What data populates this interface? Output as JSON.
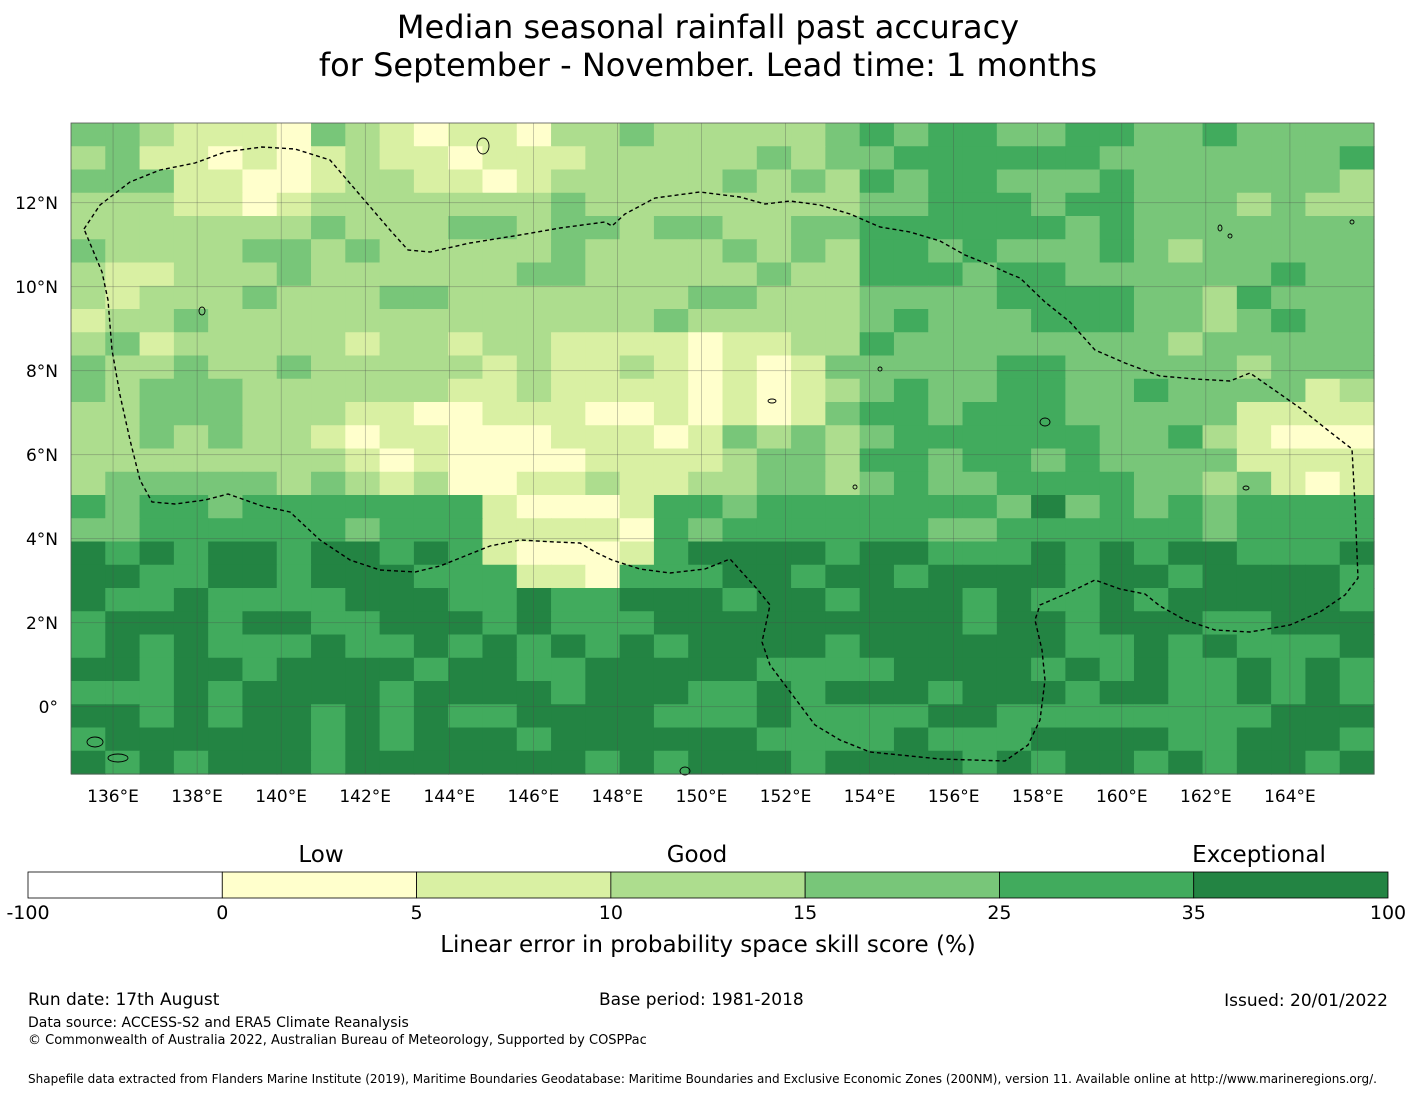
{
  "title": {
    "line1": "Median seasonal rainfall past accuracy",
    "line2": "for September - November. Lead time: 1 months"
  },
  "map": {
    "lon_range": [
      135.0,
      166.0
    ],
    "lat_range": [
      -1.6,
      13.9
    ],
    "x_ticks": [
      "136°E",
      "138°E",
      "140°E",
      "142°E",
      "144°E",
      "146°E",
      "148°E",
      "150°E",
      "152°E",
      "154°E",
      "156°E",
      "158°E",
      "160°E",
      "162°E",
      "164°E"
    ],
    "y_ticks": [
      "12°N",
      "10°N",
      "8°N",
      "6°N",
      "4°N",
      "2°N",
      "0°"
    ]
  },
  "legend": {
    "categories": [
      "Low",
      "Good",
      "Exceptional"
    ],
    "bounds": [
      "-100",
      "0",
      "5",
      "10",
      "15",
      "25",
      "35",
      "100"
    ],
    "colors": [
      "#ffffff",
      "#ffffcc",
      "#d9f0a3",
      "#addd8e",
      "#78c679",
      "#41ab5d",
      "#238443"
    ],
    "label": "Linear error in probability space skill score (%)"
  },
  "footer": {
    "run_date": "Run date: 17th August",
    "base_period": "Base period: 1981-2018",
    "issued": "Issued: 20/01/2022",
    "data_source": "Data source: ACCESS-S2 and ERA5 Climate Reanalysis",
    "copyright": "© Commonwealth of Australia 2022, Australian Bureau of Meteorology, Supported by COSPPac",
    "shapefile": "Shapefile data extracted from Flanders Marine Institute (2019), Maritime Boundaries Geodatabase: Maritime Boundaries and Exclusive Economic Zones (200NM), version 11. Available online at http://www.marineregions.org/."
  }
}
